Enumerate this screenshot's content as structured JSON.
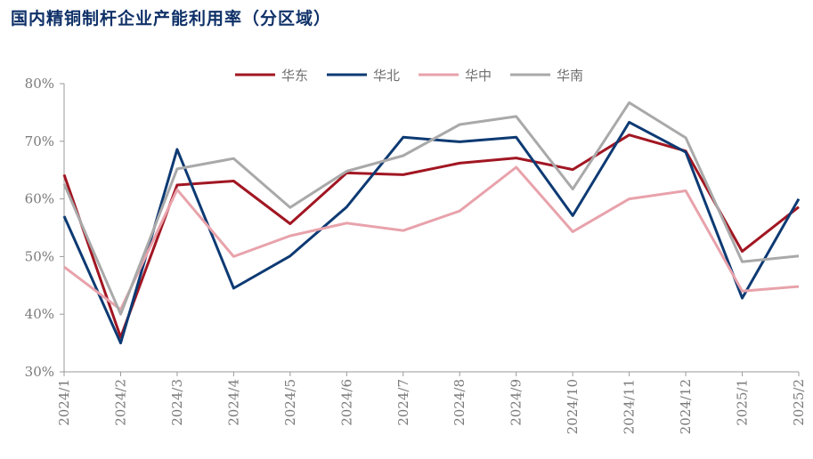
{
  "title": "国内精铜制杆企业产能利用率（分区域）",
  "chart_data": {
    "type": "line",
    "title": "国内精铜制杆企业产能利用率（分区域）",
    "xlabel": "",
    "ylabel": "",
    "ylim": [
      30,
      80
    ],
    "yticks": [
      "30%",
      "40%",
      "50%",
      "60%",
      "70%",
      "80%"
    ],
    "grid": false,
    "legend_position": "top-center",
    "categories": [
      "2024/1",
      "2024/2",
      "2024/3",
      "2024/4",
      "2024/5",
      "2024/6",
      "2024/7",
      "2024/8",
      "2024/9",
      "2024/10",
      "2024/11",
      "2024/12",
      "2025/1",
      "2025/2"
    ],
    "series": [
      {
        "name": "华东",
        "color": "#a11622",
        "values": [
          64.2,
          36.0,
          62.4,
          63.1,
          55.7,
          64.5,
          64.2,
          66.2,
          67.1,
          65.1,
          71.1,
          68.3,
          50.9,
          58.6
        ]
      },
      {
        "name": "华北",
        "color": "#0d3a73",
        "values": [
          57.0,
          35.0,
          68.6,
          44.5,
          50.1,
          58.6,
          70.7,
          69.9,
          70.7,
          57.1,
          73.3,
          68.1,
          42.8,
          60.0
        ]
      },
      {
        "name": "华中",
        "color": "#e8a2ab",
        "values": [
          48.2,
          40.8,
          61.6,
          50.0,
          53.6,
          55.8,
          54.5,
          57.9,
          65.5,
          54.3,
          60.0,
          61.4,
          44.0,
          44.8
        ]
      },
      {
        "name": "华南",
        "color": "#a9a9a9",
        "values": [
          62.6,
          40.0,
          65.2,
          67.0,
          58.5,
          64.8,
          67.5,
          72.9,
          74.3,
          61.7,
          76.7,
          70.6,
          49.1,
          50.1
        ]
      }
    ]
  }
}
